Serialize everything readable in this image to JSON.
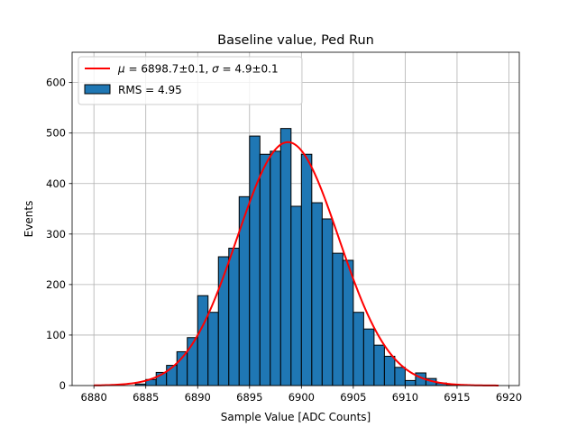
{
  "chart_data": {
    "type": "bar",
    "title": "Baseline value, Ped Run",
    "xlabel": "Sample Value [ADC Counts]",
    "ylabel": "Events",
    "xlim": [
      6877.9,
      6921.0
    ],
    "ylim": [
      0,
      660
    ],
    "xticks": [
      6880,
      6885,
      6890,
      6895,
      6900,
      6905,
      6910,
      6915,
      6920
    ],
    "yticks": [
      0,
      100,
      200,
      300,
      400,
      500,
      600
    ],
    "grid": true,
    "legend_position": "top-left",
    "bin_width": 1,
    "bins": {
      "start": [
        6884,
        6885,
        6886,
        6887,
        6888,
        6889,
        6890,
        6891,
        6892,
        6893,
        6894,
        6895,
        6896,
        6897,
        6898,
        6899,
        6900,
        6901,
        6902,
        6903,
        6904,
        6905,
        6906,
        6907,
        6908,
        6909,
        6910,
        6911,
        6912,
        6913,
        6914
      ],
      "counts": [
        3,
        12,
        26,
        40,
        67,
        95,
        178,
        145,
        255,
        272,
        374,
        494,
        458,
        464,
        509,
        355,
        458,
        362,
        330,
        262,
        248,
        145,
        112,
        80,
        58,
        36,
        10,
        25,
        14,
        5,
        2
      ]
    },
    "series": [
      {
        "name": "RMS = 4.95",
        "kind": "histogram",
        "color": "#1f77b4",
        "edgecolor": "#000000"
      },
      {
        "name": "$\\mu = 6898.7 \\pm 0.1$, $\\sigma = 4.9 \\pm 0.1$",
        "kind": "gaussian-fit",
        "color": "#ff0000",
        "mu": 6898.7,
        "sigma": 4.9,
        "amplitude": 482,
        "x_range": [
          6880,
          6919
        ]
      }
    ],
    "legend": [
      {
        "label_parts": [
          {
            "t": "μ",
            "italic": true
          },
          {
            "t": " = 6898.7±0.1, "
          },
          {
            "t": "σ",
            "italic": true
          },
          {
            "t": " = 4.9±0.1"
          }
        ]
      },
      {
        "label": "RMS = 4.95"
      }
    ]
  }
}
